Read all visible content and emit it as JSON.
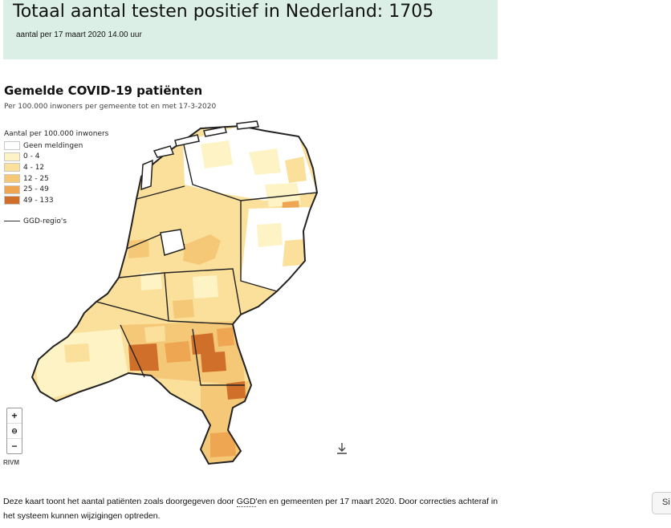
{
  "header": {
    "title": "Totaal aantal testen positief in Nederland: 1705",
    "subtitle": "aantal per 17 maart 2020 14.00 uur"
  },
  "map": {
    "title": "Gemelde COVID-19 patiënten",
    "subtitle": "Per 100.000 inwoners per gemeente tot en met 17-3-2020",
    "legend": {
      "title": "Aantal per 100.000 inwoners",
      "items": [
        {
          "label": "Geen meldingen",
          "color": "#ffffff"
        },
        {
          "label": "0 - 4",
          "color": "#fdf3c4"
        },
        {
          "label": "4 - 12",
          "color": "#fbe09b"
        },
        {
          "label": "12 - 25",
          "color": "#f5c878"
        },
        {
          "label": "25 - 49",
          "color": "#eea652"
        },
        {
          "label": "49 - 133",
          "color": "#cf6f2a"
        }
      ],
      "boundary_label": "GGD-regio's"
    },
    "zoom": {
      "in": "+",
      "reset": "⊖",
      "out": "−"
    },
    "credit": "RIVM"
  },
  "footer": {
    "text_before": "Deze kaart toont het aantal patiënten zoals doorgegeven door ",
    "ggd": "GGD",
    "text_after": "'en en gemeenten per 17 maart 2020. Door correcties achteraf in het systeem kunnen wijzigingen optreden."
  },
  "side_button": "Si"
}
